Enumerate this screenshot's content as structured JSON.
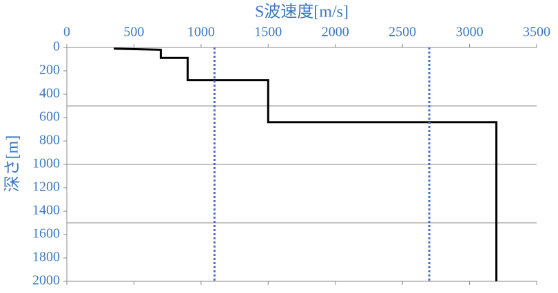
{
  "chart_data": {
    "type": "line",
    "x_label": "S波速度[m/s]",
    "y_label": "深さ[m]",
    "xlim": [
      0,
      3500
    ],
    "xticks": [
      0,
      500,
      1000,
      1500,
      2000,
      2500,
      3000,
      3500
    ],
    "ylim": [
      0,
      2000
    ],
    "yticks": [
      0,
      200,
      400,
      600,
      800,
      1000,
      1200,
      1400,
      1600,
      1800,
      2000
    ],
    "y_inverted": true,
    "x_axis_position": "top",
    "y_gridlines": [
      500,
      1000,
      1500
    ],
    "series": [
      {
        "color": "#000000",
        "dashed": false,
        "x": [
          350,
          700,
          700,
          900,
          900,
          1500,
          1500,
          3200,
          3200
        ],
        "values": [
          10,
          20,
          90,
          90,
          280,
          280,
          640,
          640,
          2000
        ]
      },
      {
        "color": "#4472c4",
        "dashed": true,
        "x": [
          1100,
          1100
        ],
        "values": [
          0,
          2000
        ]
      },
      {
        "color": "#4472c4",
        "dashed": true,
        "x": [
          2700,
          2700
        ],
        "values": [
          0,
          2000
        ]
      }
    ]
  }
}
